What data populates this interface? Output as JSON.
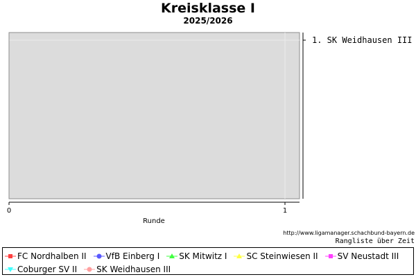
{
  "title": "Kreisklasse I",
  "subtitle": "2025/2026",
  "credit_url": "http://www.ligamanager.schachbund-bayern.de",
  "credit_caption": "Rangliste über Zeit",
  "chart_data": {
    "type": "line",
    "xlabel": "Runde",
    "x_ticks": [
      0,
      1
    ],
    "xlim": [
      0,
      1
    ],
    "rank_labels": [
      "1. SK Weidhausen III"
    ],
    "colors": {
      "plot_bg": "#dcdcdc",
      "grid": "#ebebeb"
    },
    "series": [
      {
        "name": "FC Nordhalben II",
        "color": "#ff4040",
        "marker": "square",
        "values": []
      },
      {
        "name": "VfB Einberg I",
        "color": "#5a5aff",
        "marker": "circle",
        "values": []
      },
      {
        "name": "SK Mitwitz I",
        "color": "#40ff40",
        "marker": "triangle",
        "values": []
      },
      {
        "name": "SC Steinwiesen II",
        "color": "#ffff40",
        "marker": "triangle",
        "values": []
      },
      {
        "name": "SV Neustadt III",
        "color": "#ff40ff",
        "marker": "square",
        "values": []
      },
      {
        "name": "Coburger SV II",
        "color": "#40ffff",
        "marker": "triangle-down",
        "values": []
      },
      {
        "name": "SK Weidhausen III",
        "color": "#ffa0a0",
        "marker": "circle",
        "values": []
      }
    ]
  }
}
